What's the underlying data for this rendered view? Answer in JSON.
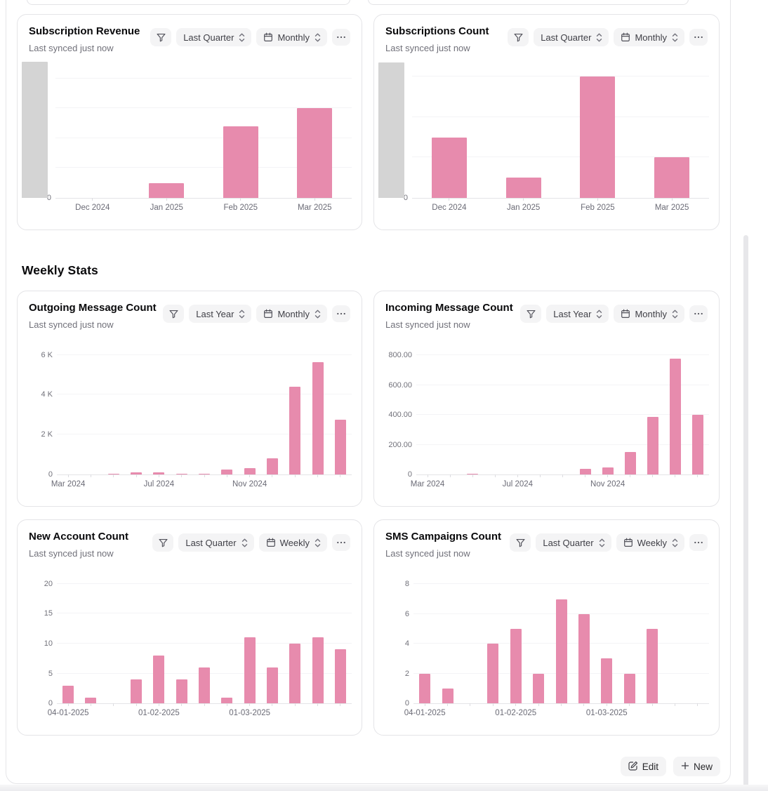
{
  "section_heading": "Weekly Stats",
  "footer": {
    "edit_label": "Edit",
    "new_label": "New"
  },
  "icons": {
    "filter": "funnel-icon",
    "range_select": "sort-chevrons-icon",
    "granularity_select": "calendar-icon",
    "more": "ellipsis-icon",
    "edit": "pencil-square-icon",
    "new": "plus-icon"
  },
  "colors": {
    "bar": "#e78bad",
    "clipped_bar": "#d4d4d4",
    "card_border": "#e4e4e7",
    "control_bg": "#f4f4f5",
    "text_primary": "#09090b",
    "text_muted": "#71717a",
    "gridline": "#f4f4f6",
    "axis_line": "#e4e4e7"
  },
  "cards": [
    {
      "title": "Subscription Revenue",
      "synced": "Last synced just now",
      "filter_range": "Last Quarter",
      "granularity": "Monthly"
    },
    {
      "title": "Subscriptions Count",
      "synced": "Last synced just now",
      "filter_range": "Last Quarter",
      "granularity": "Monthly"
    },
    {
      "title": "Outgoing Message Count",
      "synced": "Last synced just now",
      "filter_range": "Last Year",
      "granularity": "Monthly"
    },
    {
      "title": "Incoming Message Count",
      "synced": "Last synced just now",
      "filter_range": "Last Year",
      "granularity": "Monthly"
    },
    {
      "title": "New Account Count",
      "synced": "Last synced just now",
      "filter_range": "Last Quarter",
      "granularity": "Weekly"
    },
    {
      "title": "SMS Campaigns Count",
      "synced": "Last synced just now",
      "filter_range": "Last Quarter",
      "granularity": "Weekly"
    }
  ],
  "chart_data": [
    {
      "type": "bar",
      "title": "Subscription Revenue",
      "categories": [
        "Dec 2024",
        "Jan 2025",
        "Feb 2025",
        "Mar 2025"
      ],
      "n_slots": 4,
      "values": [
        0,
        0.5,
        2.4,
        3.0
      ],
      "ylim": [
        0,
        4.6
      ],
      "axis_note": "y-axis shows only 0; values estimated in unlabeled gridline units",
      "gridline_values": [
        1,
        2,
        3,
        4
      ],
      "y_ticks": [
        {
          "value": 0,
          "label": "0"
        }
      ],
      "x_ticks": [
        {
          "index": 0,
          "label": "Dec 2024"
        },
        {
          "index": 1,
          "label": "Jan 2025"
        },
        {
          "index": 2,
          "label": "Feb 2025"
        },
        {
          "index": 3,
          "label": "Mar 2025"
        }
      ],
      "clipped_leading_bar": {
        "value": 4.55,
        "color": "#d4d4d4"
      }
    },
    {
      "type": "bar",
      "title": "Subscriptions Count",
      "categories": [
        "Dec 2024",
        "Jan 2025",
        "Feb 2025",
        "Mar 2025"
      ],
      "n_slots": 4,
      "values": [
        3,
        1,
        6,
        2
      ],
      "ylim": [
        0,
        6.8
      ],
      "axis_note": "y-axis shows only 0; values estimated from gridlines",
      "gridline_values": [
        2,
        4,
        6
      ],
      "y_ticks": [
        {
          "value": 0,
          "label": "0"
        }
      ],
      "x_ticks": [
        {
          "index": 0,
          "label": "Dec 2024"
        },
        {
          "index": 1,
          "label": "Jan 2025"
        },
        {
          "index": 2,
          "label": "Feb 2025"
        },
        {
          "index": 3,
          "label": "Mar 2025"
        }
      ],
      "clipped_leading_bar": {
        "value": 6.7,
        "color": "#d4d4d4"
      }
    },
    {
      "type": "bar",
      "title": "Outgoing Message Count",
      "n_slots": 13,
      "values": [
        0,
        0,
        30,
        100,
        100,
        30,
        30,
        250,
        320,
        800,
        4400,
        5650,
        2750
      ],
      "ylim": [
        0,
        6200
      ],
      "gridline_values": [
        2000,
        4000,
        6000
      ],
      "y_ticks": [
        {
          "value": 0,
          "label": "0"
        },
        {
          "value": 2000,
          "label": "2 K"
        },
        {
          "value": 4000,
          "label": "4 K"
        },
        {
          "value": 6000,
          "label": "6 K"
        }
      ],
      "x_ticks": [
        {
          "index": 0,
          "label": "Mar 2024"
        },
        {
          "index": 4,
          "label": "Jul 2024"
        },
        {
          "index": 8,
          "label": "Nov 2024"
        }
      ]
    },
    {
      "type": "bar",
      "title": "Incoming Message Count",
      "n_slots": 13,
      "values": [
        0,
        0,
        5,
        0,
        0,
        0,
        0,
        40,
        45,
        150,
        385,
        780,
        400
      ],
      "ylim": [
        0,
        830
      ],
      "gridline_values": [
        200,
        400,
        600,
        800
      ],
      "y_ticks": [
        {
          "value": 0,
          "label": "0"
        },
        {
          "value": 200,
          "label": "200.00"
        },
        {
          "value": 400,
          "label": "400.00"
        },
        {
          "value": 600,
          "label": "600.00"
        },
        {
          "value": 800,
          "label": "800.00"
        }
      ],
      "x_ticks": [
        {
          "index": 0,
          "label": "Mar 2024"
        },
        {
          "index": 4,
          "label": "Jul 2024"
        },
        {
          "index": 8,
          "label": "Nov 2024"
        }
      ]
    },
    {
      "type": "bar",
      "title": "New Account Count",
      "n_slots": 13,
      "values": [
        3,
        1,
        0,
        4,
        8,
        4,
        6,
        1,
        11,
        6,
        10,
        11,
        9
      ],
      "ylim": [
        0,
        20.7
      ],
      "gridline_values": [
        5,
        10,
        15,
        20
      ],
      "y_ticks": [
        {
          "value": 0,
          "label": "0"
        },
        {
          "value": 5,
          "label": "5"
        },
        {
          "value": 10,
          "label": "10"
        },
        {
          "value": 15,
          "label": "15"
        },
        {
          "value": 20,
          "label": "20"
        }
      ],
      "x_ticks": [
        {
          "index": 0,
          "label": "04-01-2025"
        },
        {
          "index": 4,
          "label": "01-02-2025"
        },
        {
          "index": 8,
          "label": "01-03-2025"
        }
      ]
    },
    {
      "type": "bar",
      "title": "SMS Campaigns Count",
      "n_slots": 13,
      "values": [
        2,
        1,
        0,
        4,
        5,
        2,
        7,
        6,
        3,
        2,
        5,
        0,
        0
      ],
      "ylim": [
        0,
        8.3
      ],
      "gridline_values": [
        2,
        4,
        6,
        8
      ],
      "y_ticks": [
        {
          "value": 0,
          "label": "0"
        },
        {
          "value": 2,
          "label": "2"
        },
        {
          "value": 4,
          "label": "4"
        },
        {
          "value": 6,
          "label": "6"
        },
        {
          "value": 8,
          "label": "8"
        }
      ],
      "x_ticks": [
        {
          "index": 0,
          "label": "04-01-2025"
        },
        {
          "index": 4,
          "label": "01-02-2025"
        },
        {
          "index": 8,
          "label": "01-03-2025"
        }
      ]
    }
  ]
}
